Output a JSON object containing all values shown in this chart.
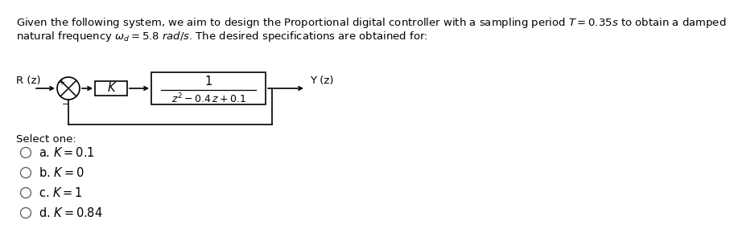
{
  "title_line1": "Given the following system, we aim to design the Proportional digital controller with a sampling period $T = 0.35s$ to obtain a damped",
  "title_line2": "natural frequency $\\omega_d = 5.8\\ rad/s$. The desired specifications are obtained for:",
  "bg_color": "#ffffff",
  "text_color": "#000000",
  "options": [
    "a. $K = 0.1$",
    "b. $K = 0$",
    "c. $K = 1$",
    "d. $K = 0.84$"
  ],
  "select_one_text": "Select one:",
  "R_label": "R (z)",
  "Y_label": "Y (z)",
  "K_label": "K",
  "tf_numerator": "1",
  "font_size_title": 9.5,
  "font_size_diagram": 9.5,
  "font_size_options": 10.5
}
